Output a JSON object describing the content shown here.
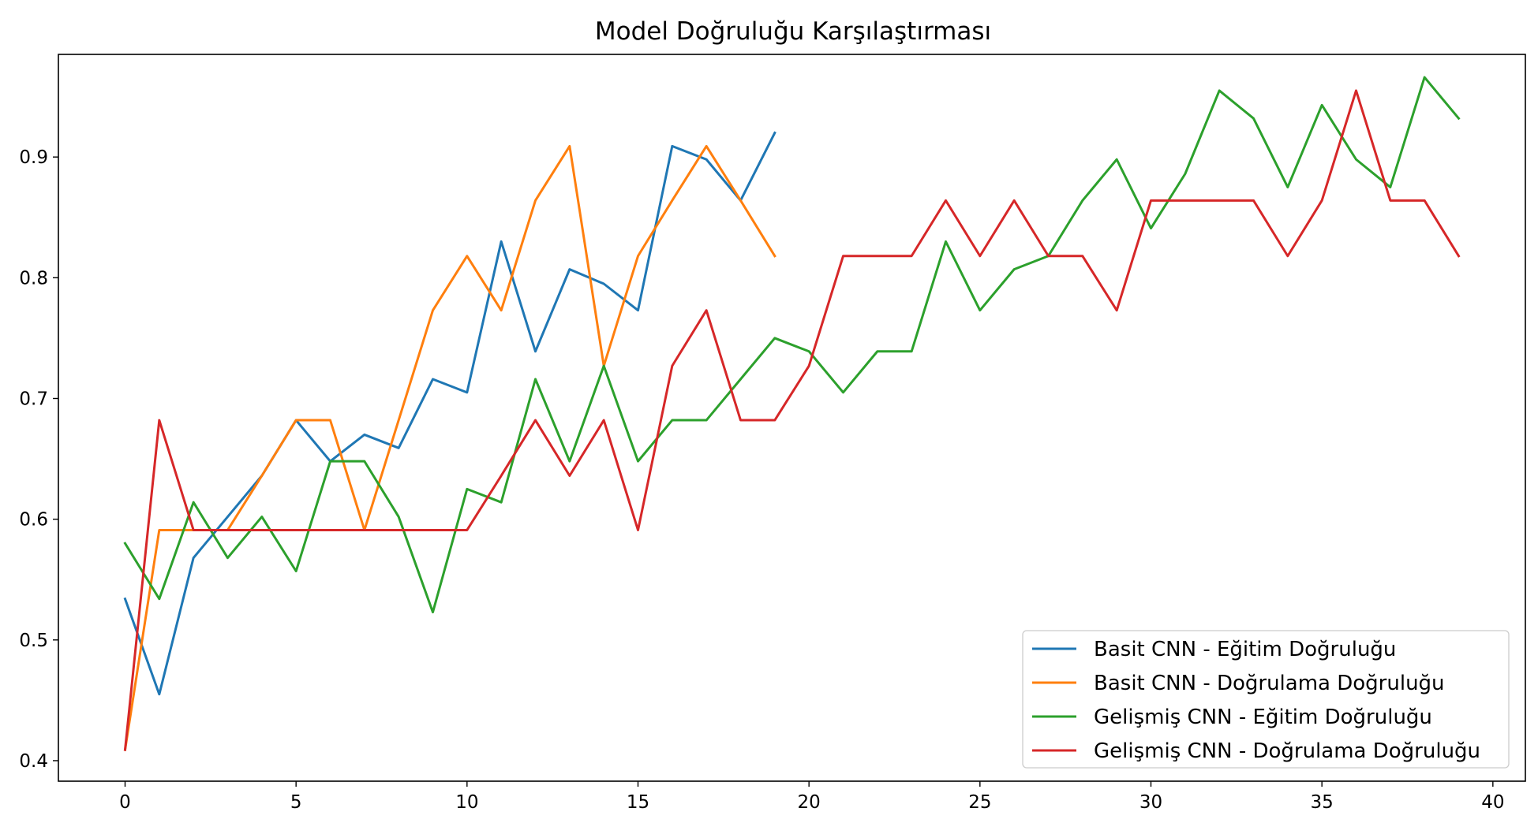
{
  "chart_data": {
    "type": "line",
    "title": "Model Doğruluğu Karşılaştırması",
    "xlabel": "",
    "ylabel": "",
    "xlim": [
      -1.95,
      40.95
    ],
    "ylim": [
      0.383,
      0.985
    ],
    "xticks": [
      0,
      5,
      10,
      15,
      20,
      25,
      30,
      35,
      40
    ],
    "yticks": [
      0.4,
      0.5,
      0.6,
      0.7,
      0.8,
      0.9
    ],
    "ytick_labels": [
      "0.4",
      "0.5",
      "0.6",
      "0.7",
      "0.8",
      "0.9"
    ],
    "grid": false,
    "legend_position": "lower-right",
    "series": [
      {
        "name": "Basit CNN - Eğitim Doğruluğu",
        "color": "#1f77b4",
        "x": [
          0,
          1,
          2,
          3,
          4,
          5,
          6,
          7,
          8,
          9,
          10,
          11,
          12,
          13,
          14,
          15,
          16,
          17,
          18,
          19
        ],
        "values": [
          0.534,
          0.455,
          0.568,
          0.602,
          0.636,
          0.682,
          0.648,
          0.67,
          0.659,
          0.716,
          0.705,
          0.83,
          0.739,
          0.807,
          0.795,
          0.773,
          0.909,
          0.898,
          0.864,
          0.92
        ]
      },
      {
        "name": "Basit CNN - Doğrulama Doğruluğu",
        "color": "#ff7f0e",
        "x": [
          0,
          1,
          2,
          3,
          4,
          5,
          6,
          7,
          8,
          9,
          10,
          11,
          12,
          13,
          14,
          15,
          16,
          17,
          18,
          19
        ],
        "values": [
          0.409,
          0.591,
          0.591,
          0.591,
          0.636,
          0.682,
          0.682,
          0.591,
          0.682,
          0.773,
          0.818,
          0.773,
          0.864,
          0.909,
          0.727,
          0.818,
          0.864,
          0.909,
          0.864,
          0.818
        ]
      },
      {
        "name": "Gelişmiş CNN - Eğitim Doğruluğu",
        "color": "#2ca02c",
        "x": [
          0,
          1,
          2,
          3,
          4,
          5,
          6,
          7,
          8,
          9,
          10,
          11,
          12,
          13,
          14,
          15,
          16,
          17,
          18,
          19,
          20,
          21,
          22,
          23,
          24,
          25,
          26,
          27,
          28,
          29,
          30,
          31,
          32,
          33,
          34,
          35,
          36,
          37,
          38,
          39
        ],
        "values": [
          0.58,
          0.534,
          0.614,
          0.568,
          0.602,
          0.557,
          0.648,
          0.648,
          0.602,
          0.523,
          0.625,
          0.614,
          0.716,
          0.648,
          0.727,
          0.648,
          0.682,
          0.682,
          0.716,
          0.75,
          0.739,
          0.705,
          0.739,
          0.739,
          0.83,
          0.773,
          0.807,
          0.818,
          0.864,
          0.898,
          0.841,
          0.886,
          0.955,
          0.932,
          0.875,
          0.943,
          0.898,
          0.875,
          0.966,
          0.932
        ]
      },
      {
        "name": "Gelişmiş CNN - Doğrulama Doğruluğu",
        "color": "#d62728",
        "x": [
          0,
          1,
          2,
          3,
          4,
          5,
          6,
          7,
          8,
          9,
          10,
          11,
          12,
          13,
          14,
          15,
          16,
          17,
          18,
          19,
          20,
          21,
          22,
          23,
          24,
          25,
          26,
          27,
          28,
          29,
          30,
          31,
          32,
          33,
          34,
          35,
          36,
          37,
          38,
          39
        ],
        "values": [
          0.409,
          0.682,
          0.591,
          0.591,
          0.591,
          0.591,
          0.591,
          0.591,
          0.591,
          0.591,
          0.591,
          0.636,
          0.682,
          0.636,
          0.682,
          0.591,
          0.727,
          0.773,
          0.682,
          0.682,
          0.727,
          0.818,
          0.818,
          0.818,
          0.864,
          0.818,
          0.864,
          0.818,
          0.818,
          0.773,
          0.864,
          0.864,
          0.864,
          0.864,
          0.818,
          0.864,
          0.955,
          0.864,
          0.864,
          0.818
        ]
      }
    ]
  }
}
